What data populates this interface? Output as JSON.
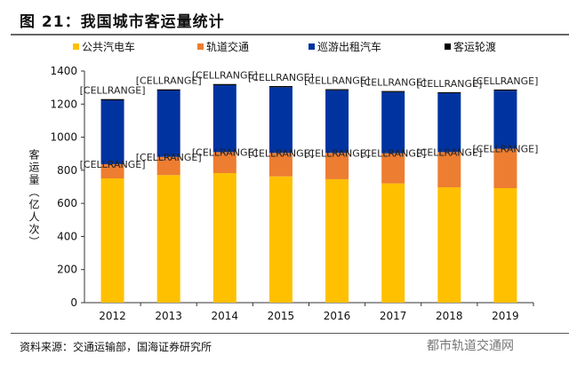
{
  "title": "图 21：我国城市客运量统计",
  "source": "资料来源：交通运输部，国海证券研究所",
  "watermark": "都市轨道交通网",
  "chart_data": {
    "type": "bar",
    "stacked": true,
    "title": "",
    "ylabel": "客运量（亿人次）",
    "xlabel": "",
    "ylim": [
      0,
      1400
    ],
    "yticks": [
      0,
      200,
      400,
      600,
      800,
      1000,
      1200,
      1400
    ],
    "grid": false,
    "legend": "top",
    "categories": [
      "2012",
      "2013",
      "2014",
      "2015",
      "2016",
      "2017",
      "2018",
      "2019"
    ],
    "series": [
      {
        "name": "公共汽电车",
        "color": "#FFC000",
        "values": [
          751,
          771,
          783,
          763,
          746,
          721,
          697,
          692
        ]
      },
      {
        "name": "轨道交通",
        "color": "#ED7D31",
        "values": [
          86,
          110,
          127,
          142,
          159,
          182,
          213,
          238
        ]
      },
      {
        "name": "巡游出租汽车",
        "color": "#0033A0",
        "values": [
          386,
          401,
          404,
          397,
          378,
          369,
          356,
          351
        ]
      },
      {
        "name": "客运轮渡",
        "color": "#000000",
        "values": [
          7,
          7,
          7,
          7,
          7,
          7,
          6,
          7
        ]
      }
    ],
    "data_label_text": "[CELLRANGE]"
  }
}
